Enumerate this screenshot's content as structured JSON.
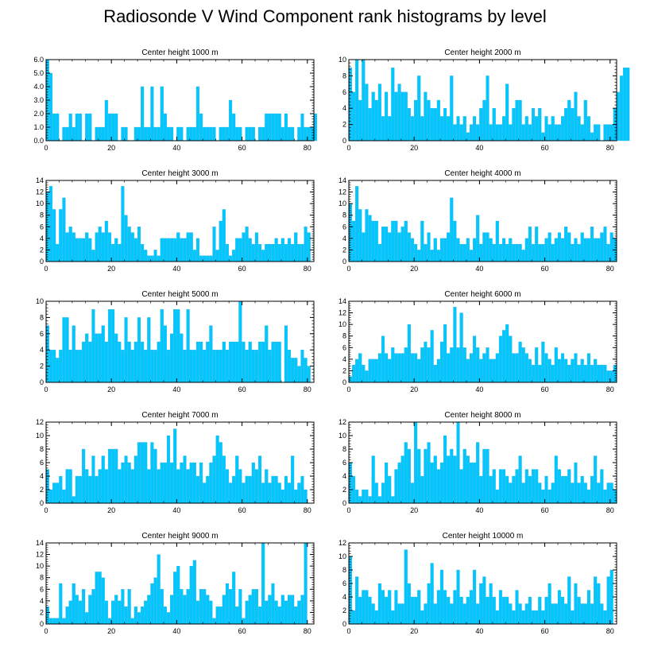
{
  "title": "Radiosonde V Wind Component rank histograms by level",
  "colors": {
    "bar": "#00c8ff",
    "bar_edge": "#33aadd",
    "axis": "#000000"
  },
  "chart_data": [
    {
      "type": "bar",
      "title": "Center height 1000 m",
      "xlim": [
        0,
        82
      ],
      "ylim": [
        0,
        6
      ],
      "yticks": [
        0,
        1,
        2,
        3,
        4,
        5,
        6
      ],
      "ytick_format": "0.0",
      "xticks": [
        0,
        20,
        40,
        60,
        80
      ],
      "values": [
        6,
        5,
        2,
        2,
        0,
        1,
        1,
        2,
        1,
        2,
        2,
        0,
        2,
        2,
        0,
        1,
        1,
        1,
        3,
        2,
        2,
        2,
        0,
        1,
        1,
        0,
        0,
        1,
        1,
        4,
        1,
        1,
        4,
        1,
        1,
        4,
        2,
        1,
        1,
        0,
        1,
        1,
        0,
        1,
        1,
        1,
        4,
        2,
        1,
        1,
        1,
        1,
        0,
        1,
        1,
        1,
        3,
        2,
        1,
        1,
        0,
        1,
        1,
        1,
        0,
        1,
        1,
        2,
        2,
        2,
        2,
        2,
        1,
        2,
        1,
        1,
        0,
        1,
        2,
        1,
        1,
        1,
        2
      ]
    },
    {
      "type": "bar",
      "title": "Center height 2000 m",
      "xlim": [
        0,
        82
      ],
      "ylim": [
        0,
        10
      ],
      "yticks": [
        0,
        2,
        4,
        6,
        8,
        10
      ],
      "xticks": [
        0,
        20,
        40,
        60,
        80
      ],
      "values": [
        9,
        6,
        10,
        5,
        10,
        7,
        4,
        6,
        5,
        7,
        3,
        6,
        3,
        9,
        6,
        7,
        6,
        6,
        4,
        3,
        5,
        8,
        3,
        6,
        5,
        4,
        4,
        5,
        3,
        4,
        3,
        8,
        2,
        3,
        2,
        3,
        1,
        2,
        3,
        2,
        4,
        5,
        8,
        2,
        4,
        2,
        2,
        3,
        7,
        2,
        4,
        5,
        5,
        2,
        3,
        2,
        4,
        3,
        4,
        1,
        3,
        2,
        3,
        2,
        2,
        3,
        4,
        5,
        4,
        6,
        3,
        2,
        5,
        3,
        1,
        2,
        2,
        0,
        2,
        2,
        2,
        4,
        6,
        8,
        9,
        9
      ]
    },
    {
      "type": "bar",
      "title": "Center height 3000 m",
      "xlim": [
        0,
        82
      ],
      "ylim": [
        0,
        14
      ],
      "yticks": [
        0,
        2,
        4,
        6,
        8,
        10,
        12,
        14
      ],
      "xticks": [
        0,
        20,
        40,
        60,
        80
      ],
      "values": [
        12,
        13,
        9,
        3,
        9,
        11,
        5,
        6,
        5,
        4,
        4,
        4,
        5,
        4,
        2,
        5,
        6,
        5,
        7,
        5,
        3,
        4,
        3,
        13,
        8,
        6,
        5,
        4,
        6,
        3,
        2,
        1,
        1,
        2,
        1,
        4,
        4,
        4,
        4,
        4,
        5,
        4,
        4,
        5,
        5,
        2,
        4,
        1,
        1,
        1,
        1,
        6,
        2,
        7,
        9,
        3,
        1,
        2,
        4,
        4,
        5,
        6,
        4,
        3,
        5,
        3,
        2,
        3,
        3,
        3,
        4,
        3,
        4,
        3,
        4,
        3,
        5,
        3,
        3,
        6,
        5
      ]
    },
    {
      "type": "bar",
      "title": "Center height 4000 m",
      "xlim": [
        0,
        82
      ],
      "ylim": [
        0,
        14
      ],
      "yticks": [
        0,
        2,
        4,
        6,
        8,
        10,
        12,
        14
      ],
      "xticks": [
        0,
        20,
        40,
        60,
        80
      ],
      "values": [
        10,
        7,
        13,
        9,
        5,
        9,
        8,
        7,
        7,
        3,
        6,
        6,
        5,
        7,
        7,
        5,
        6,
        7,
        5,
        4,
        3,
        2,
        7,
        3,
        5,
        2,
        4,
        2,
        4,
        4,
        5,
        11,
        7,
        4,
        3,
        3,
        4,
        2,
        4,
        8,
        3,
        5,
        5,
        4,
        3,
        7,
        3,
        4,
        3,
        4,
        3,
        3,
        3,
        2,
        4,
        6,
        3,
        6,
        3,
        3,
        4,
        5,
        3,
        4,
        5,
        4,
        6,
        5,
        3,
        4,
        3,
        5,
        4,
        4,
        6,
        4,
        4,
        5,
        6,
        3,
        5,
        4
      ]
    },
    {
      "type": "bar",
      "title": "Center height 5000 m",
      "xlim": [
        0,
        82
      ],
      "ylim": [
        0,
        10
      ],
      "yticks": [
        0,
        2,
        4,
        6,
        8,
        10
      ],
      "xticks": [
        0,
        20,
        40,
        60,
        80
      ],
      "values": [
        7,
        4,
        4,
        3,
        4,
        8,
        8,
        4,
        7,
        4,
        4,
        5,
        6,
        5,
        9,
        6,
        6,
        7,
        5,
        9,
        9,
        6,
        5,
        4,
        8,
        5,
        4,
        5,
        8,
        5,
        4,
        8,
        4,
        4,
        5,
        9,
        7,
        4,
        6,
        9,
        9,
        6,
        4,
        9,
        4,
        4,
        5,
        5,
        4,
        5,
        7,
        4,
        4,
        4,
        5,
        4,
        5,
        5,
        5,
        10,
        5,
        4,
        5,
        4,
        4,
        5,
        5,
        7,
        4,
        5,
        5,
        5,
        0,
        7,
        4,
        3,
        3,
        2,
        4,
        3,
        2
      ]
    },
    {
      "type": "bar",
      "title": "Center height 6000 m",
      "xlim": [
        0,
        82
      ],
      "ylim": [
        0,
        14
      ],
      "yticks": [
        0,
        2,
        4,
        6,
        8,
        10,
        12,
        14
      ],
      "xticks": [
        0,
        20,
        40,
        60,
        80
      ],
      "values": [
        1,
        3,
        4,
        5,
        3,
        2,
        4,
        4,
        4,
        5,
        8,
        5,
        4,
        6,
        5,
        5,
        5,
        6,
        10,
        5,
        5,
        4,
        6,
        7,
        6,
        9,
        3,
        4,
        7,
        10,
        5,
        6,
        13,
        6,
        12,
        6,
        4,
        5,
        8,
        6,
        4,
        5,
        6,
        4,
        4,
        5,
        8,
        9,
        10,
        8,
        5,
        5,
        7,
        6,
        5,
        4,
        3,
        6,
        3,
        7,
        5,
        4,
        3,
        6,
        4,
        5,
        4,
        3,
        4,
        5,
        3,
        4,
        3,
        5,
        3,
        4,
        3,
        3,
        3,
        2,
        2,
        3
      ]
    },
    {
      "type": "bar",
      "title": "Center height 7000 m",
      "xlim": [
        0,
        82
      ],
      "ylim": [
        0,
        12
      ],
      "yticks": [
        0,
        2,
        4,
        6,
        8,
        10,
        12
      ],
      "xticks": [
        0,
        20,
        40,
        60,
        80
      ],
      "values": [
        5,
        2,
        3,
        3,
        4,
        2,
        5,
        5,
        1,
        4,
        4,
        8,
        5,
        4,
        7,
        4,
        5,
        7,
        5,
        8,
        8,
        8,
        5,
        6,
        7,
        6,
        5,
        7,
        9,
        9,
        9,
        5,
        9,
        8,
        5,
        6,
        6,
        10,
        6,
        11,
        5,
        6,
        7,
        5,
        6,
        6,
        4,
        6,
        3,
        4,
        6,
        7,
        10,
        9,
        7,
        5,
        3,
        4,
        7,
        5,
        3,
        4,
        4,
        6,
        5,
        7,
        3,
        5,
        3,
        4,
        4,
        3,
        2,
        4,
        3,
        7,
        2,
        3,
        4,
        2
      ]
    },
    {
      "type": "bar",
      "title": "Center height 8000 m",
      "xlim": [
        0,
        82
      ],
      "ylim": [
        0,
        12
      ],
      "yticks": [
        0,
        2,
        4,
        6,
        8,
        10,
        12
      ],
      "xticks": [
        0,
        20,
        40,
        60,
        80
      ],
      "values": [
        6,
        4,
        2,
        1,
        2,
        2,
        1,
        7,
        3,
        1,
        3,
        6,
        4,
        1,
        5,
        6,
        7,
        9,
        8,
        3,
        12,
        8,
        4,
        8,
        9,
        6,
        7,
        5,
        6,
        10,
        7,
        8,
        7,
        12,
        5,
        8,
        7,
        6,
        6,
        9,
        4,
        8,
        8,
        4,
        5,
        2,
        5,
        5,
        4,
        3,
        4,
        5,
        7,
        3,
        5,
        4,
        5,
        5,
        3,
        2,
        4,
        2,
        3,
        7,
        5,
        4,
        4,
        5,
        3,
        6,
        3,
        4,
        3,
        2,
        4,
        7,
        3,
        5,
        2,
        3,
        3,
        2
      ]
    },
    {
      "type": "bar",
      "title": "Center height 9000 m",
      "xlim": [
        0,
        82
      ],
      "ylim": [
        0,
        14
      ],
      "yticks": [
        0,
        2,
        4,
        6,
        8,
        10,
        12,
        14
      ],
      "xticks": [
        0,
        20,
        40,
        60,
        80
      ],
      "values": [
        3,
        1,
        1,
        1,
        7,
        1,
        3,
        4,
        7,
        5,
        4,
        6,
        2,
        5,
        6,
        9,
        9,
        8,
        4,
        1,
        4,
        5,
        4,
        6,
        3,
        6,
        1,
        3,
        2,
        3,
        4,
        5,
        7,
        8,
        12,
        6,
        3,
        2,
        5,
        9,
        10,
        6,
        5,
        6,
        10,
        11,
        4,
        6,
        6,
        5,
        4,
        1,
        3,
        3,
        5,
        7,
        6,
        9,
        3,
        6,
        1,
        4,
        5,
        6,
        6,
        3,
        14,
        4,
        5,
        7,
        4,
        3,
        5,
        4,
        5,
        5,
        3,
        4,
        5,
        14
      ]
    },
    {
      "type": "bar",
      "title": "Center height 10000 m",
      "xlim": [
        0,
        82
      ],
      "ylim": [
        0,
        12
      ],
      "yticks": [
        0,
        2,
        4,
        6,
        8,
        10,
        12
      ],
      "xticks": [
        0,
        20,
        40,
        60,
        80
      ],
      "values": [
        10,
        2,
        7,
        4,
        5,
        5,
        4,
        3,
        2,
        6,
        5,
        4,
        5,
        2,
        5,
        3,
        3,
        11,
        6,
        4,
        4,
        5,
        2,
        3,
        6,
        9,
        3,
        5,
        8,
        5,
        4,
        3,
        5,
        8,
        4,
        3,
        4,
        5,
        8,
        3,
        6,
        7,
        4,
        6,
        4,
        2,
        5,
        4,
        4,
        3,
        2,
        5,
        3,
        2,
        3,
        4,
        2,
        2,
        4,
        2,
        4,
        6,
        3,
        3,
        5,
        4,
        3,
        7,
        2,
        6,
        4,
        3,
        3,
        5,
        3,
        7,
        6,
        3,
        2,
        7,
        8
      ]
    }
  ]
}
